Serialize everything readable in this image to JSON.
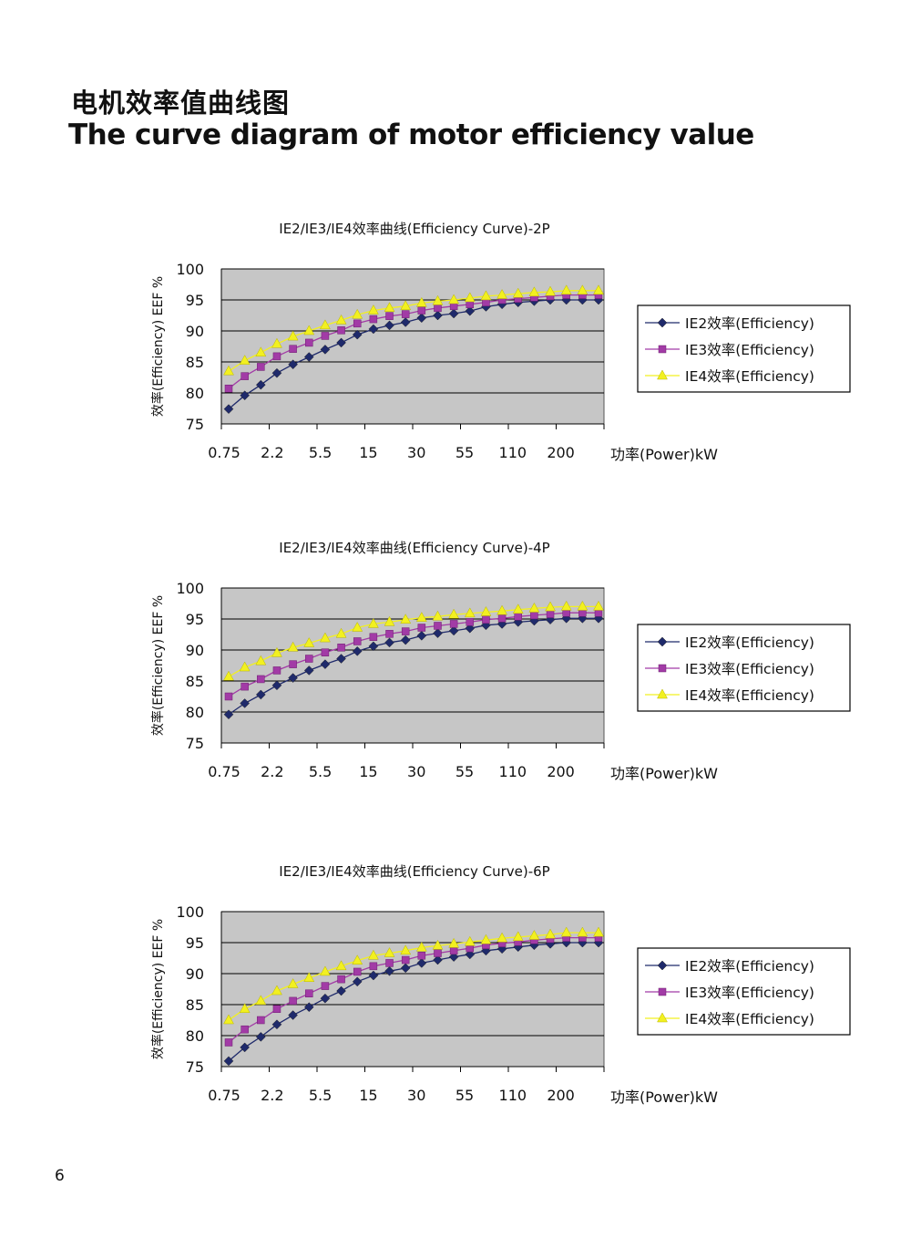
{
  "page": {
    "title_cn": "电机效率值曲线图",
    "title_en": "The curve diagram of motor efficiency value",
    "page_number": "6"
  },
  "colors": {
    "ie2": "#1f2a6b",
    "ie3": "#a23ba6",
    "ie4": "#f2f020",
    "plot_bg": "#c6c6c6",
    "grid": "#000000"
  },
  "chart_data": [
    {
      "type": "line",
      "title": "IE2/IE3/IE4效率曲线(Efficiency Curve)-2P",
      "xlabel": "功率(Power)kW",
      "ylabel": "效率(Efficiency) EEF %",
      "ylim": [
        75,
        100
      ],
      "yticks": [
        "100",
        "95",
        "90",
        "85",
        "80",
        "75"
      ],
      "xtick_labels": [
        "0.75",
        "2.2",
        "5.5",
        "15",
        "30",
        "55",
        "110",
        "200"
      ],
      "grid": "horizontal",
      "legend_position": "right",
      "series": [
        {
          "name": "IE2效率(Efficiency)",
          "values": [
            77.4,
            79.6,
            81.3,
            83.2,
            84.6,
            85.8,
            87.0,
            88.1,
            89.4,
            90.3,
            90.9,
            91.4,
            92.1,
            92.5,
            92.8,
            93.2,
            93.9,
            94.3,
            94.6,
            94.8,
            95.0,
            95.0,
            95.0,
            95.0
          ]
        },
        {
          "name": "IE3效率(Efficiency)",
          "values": [
            80.7,
            82.7,
            84.2,
            85.9,
            87.1,
            88.1,
            89.2,
            90.1,
            91.2,
            91.9,
            92.4,
            92.7,
            93.3,
            93.7,
            94.0,
            94.3,
            94.6,
            95.0,
            95.2,
            95.4,
            95.6,
            95.8,
            95.8,
            95.8
          ]
        },
        {
          "name": "IE4效率(Efficiency)",
          "values": [
            83.5,
            85.2,
            86.5,
            87.9,
            89.1,
            90.0,
            90.9,
            91.7,
            92.6,
            93.3,
            93.7,
            94.0,
            94.5,
            94.8,
            95.0,
            95.3,
            95.6,
            95.8,
            96.0,
            96.2,
            96.3,
            96.5,
            96.5,
            96.5
          ]
        }
      ]
    },
    {
      "type": "line",
      "title": "IE2/IE3/IE4效率曲线(Efficiency Curve)-4P",
      "xlabel": "功率(Power)kW",
      "ylabel": "效率(Efficiency) EEF %",
      "ylim": [
        75,
        100
      ],
      "yticks": [
        "100",
        "95",
        "90",
        "85",
        "80",
        "75"
      ],
      "xtick_labels": [
        "0.75",
        "2.2",
        "5.5",
        "15",
        "30",
        "55",
        "110",
        "200"
      ],
      "grid": "horizontal",
      "legend_position": "right",
      "series": [
        {
          "name": "IE2效率(Efficiency)",
          "values": [
            79.6,
            81.4,
            82.8,
            84.3,
            85.5,
            86.7,
            87.7,
            88.6,
            89.8,
            90.6,
            91.2,
            91.6,
            92.3,
            92.7,
            93.1,
            93.5,
            94.0,
            94.2,
            94.5,
            94.7,
            94.9,
            95.1,
            95.1,
            95.1
          ]
        },
        {
          "name": "IE3效率(Efficiency)",
          "values": [
            82.5,
            84.1,
            85.3,
            86.7,
            87.7,
            88.6,
            89.6,
            90.4,
            91.4,
            92.1,
            92.6,
            93.0,
            93.6,
            93.9,
            94.2,
            94.5,
            94.9,
            95.1,
            95.4,
            95.6,
            95.8,
            96.0,
            96.0,
            96.0
          ]
        },
        {
          "name": "IE4效率(Efficiency)",
          "values": [
            85.7,
            87.2,
            88.2,
            89.5,
            90.4,
            91.1,
            91.9,
            92.6,
            93.6,
            94.2,
            94.5,
            94.9,
            95.2,
            95.4,
            95.7,
            95.9,
            96.1,
            96.3,
            96.5,
            96.7,
            96.9,
            97.0,
            97.0,
            97.0
          ]
        }
      ]
    },
    {
      "type": "line",
      "title": "IE2/IE3/IE4效率曲线(Efficiency Curve)-6P",
      "xlabel": "功率(Power)kW",
      "ylabel": "效率(Efficiency) EEF %",
      "ylim": [
        75,
        100
      ],
      "yticks": [
        "100",
        "95",
        "90",
        "85",
        "80",
        "75"
      ],
      "xtick_labels": [
        "0.75",
        "2.2",
        "5.5",
        "15",
        "30",
        "55",
        "110",
        "200"
      ],
      "grid": "horizontal",
      "legend_position": "right",
      "series": [
        {
          "name": "IE2效率(Efficiency)",
          "values": [
            75.9,
            78.1,
            79.8,
            81.8,
            83.3,
            84.6,
            86.0,
            87.2,
            88.7,
            89.7,
            90.4,
            90.9,
            91.7,
            92.2,
            92.7,
            93.1,
            93.7,
            94.0,
            94.3,
            94.6,
            94.8,
            95.0,
            95.0,
            95.0
          ]
        },
        {
          "name": "IE3效率(Efficiency)",
          "values": [
            78.9,
            81.0,
            82.5,
            84.3,
            85.6,
            86.8,
            88.0,
            89.1,
            90.3,
            91.2,
            91.7,
            92.2,
            92.9,
            93.3,
            93.7,
            94.1,
            94.6,
            94.9,
            95.1,
            95.4,
            95.6,
            95.8,
            95.8,
            95.8
          ]
        },
        {
          "name": "IE4效率(Efficiency)",
          "values": [
            82.5,
            84.3,
            85.6,
            87.2,
            88.3,
            89.3,
            90.3,
            91.2,
            92.1,
            92.9,
            93.3,
            93.7,
            94.2,
            94.5,
            94.8,
            95.1,
            95.4,
            95.7,
            95.9,
            96.1,
            96.3,
            96.6,
            96.6,
            96.6
          ]
        }
      ]
    }
  ]
}
